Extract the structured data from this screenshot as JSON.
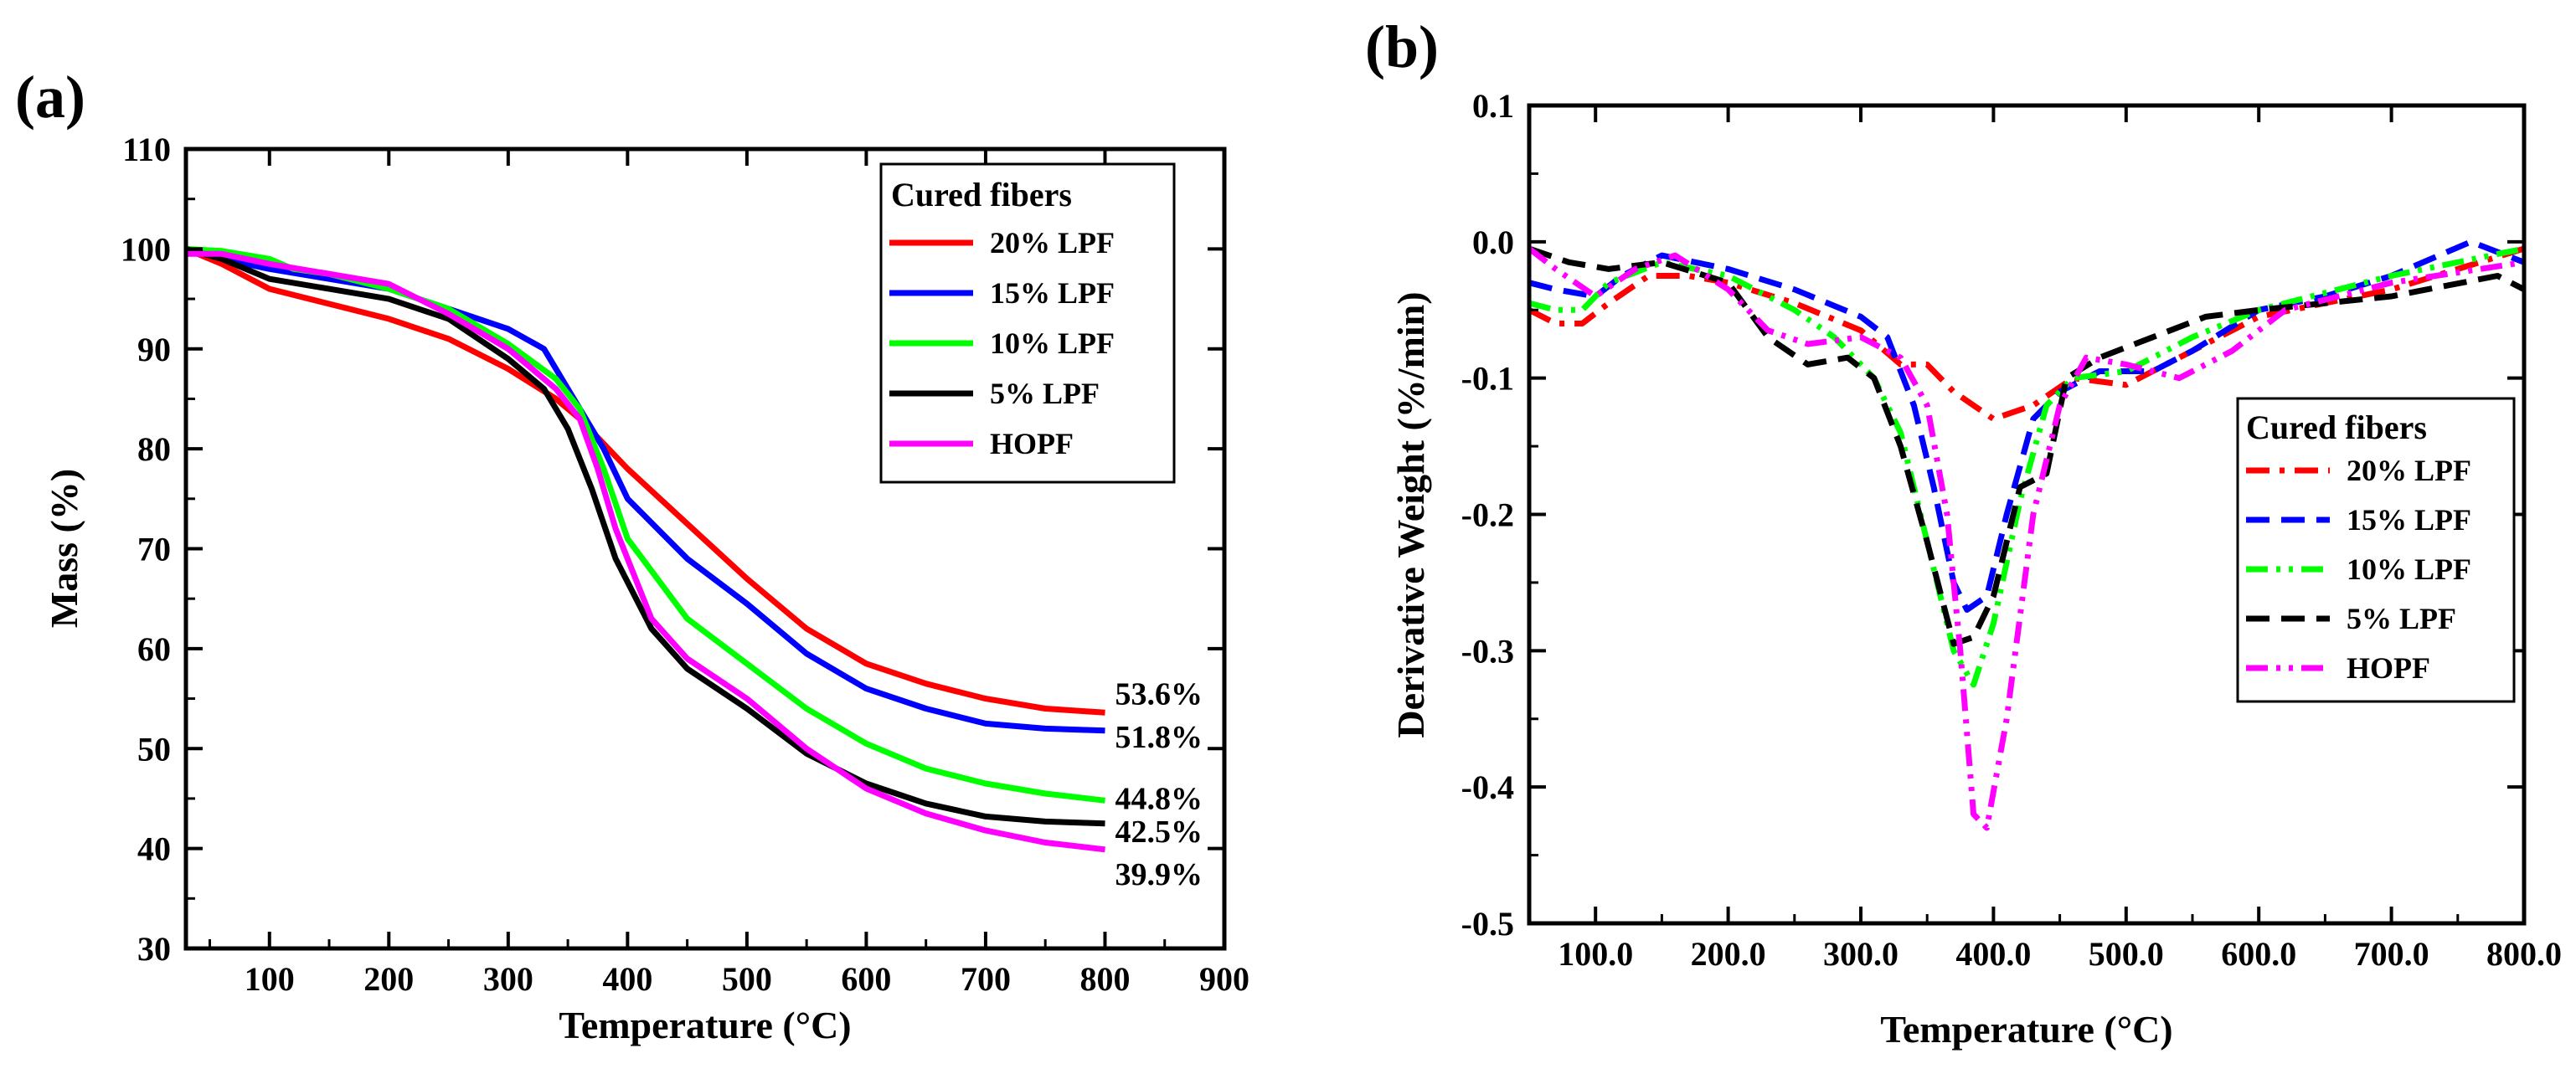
{
  "chart_data": [
    {
      "id": "a",
      "type": "line",
      "panel_label": "(a)",
      "title": "",
      "xlabel": "Temperature (°C)",
      "ylabel": "Mass (%)",
      "xlim": [
        30,
        900
      ],
      "ylim": [
        30,
        110
      ],
      "xticks": [
        100,
        200,
        300,
        400,
        500,
        600,
        700,
        800,
        900
      ],
      "yticks": [
        30,
        40,
        50,
        60,
        70,
        80,
        90,
        100,
        110
      ],
      "grid": false,
      "legend": {
        "title": "Cured fibers",
        "placement": "top-right"
      },
      "series": [
        {
          "name": "20% LPF",
          "color": "#ff0000",
          "dash": "solid",
          "points": [
            [
              30,
              100
            ],
            [
              60,
              98.5
            ],
            [
              100,
              96
            ],
            [
              150,
              94.5
            ],
            [
              200,
              93
            ],
            [
              250,
              91
            ],
            [
              300,
              88
            ],
            [
              340,
              85
            ],
            [
              360,
              83
            ],
            [
              380,
              80.5
            ],
            [
              400,
              78
            ],
            [
              450,
              72.5
            ],
            [
              500,
              67
            ],
            [
              550,
              62
            ],
            [
              600,
              58.5
            ],
            [
              650,
              56.5
            ],
            [
              700,
              55
            ],
            [
              750,
              54
            ],
            [
              800,
              53.6
            ]
          ]
        },
        {
          "name": "15% LPF",
          "color": "#0000ff",
          "dash": "solid",
          "points": [
            [
              30,
              100
            ],
            [
              60,
              99
            ],
            [
              100,
              98
            ],
            [
              150,
              97
            ],
            [
              200,
              96
            ],
            [
              250,
              94
            ],
            [
              300,
              92
            ],
            [
              330,
              90
            ],
            [
              350,
              86
            ],
            [
              365,
              83
            ],
            [
              380,
              80
            ],
            [
              400,
              75
            ],
            [
              450,
              69
            ],
            [
              500,
              64.5
            ],
            [
              550,
              59.5
            ],
            [
              600,
              56
            ],
            [
              650,
              54
            ],
            [
              700,
              52.5
            ],
            [
              750,
              52
            ],
            [
              800,
              51.8
            ]
          ]
        },
        {
          "name": "10% LPF",
          "color": "#00ff00",
          "dash": "solid",
          "points": [
            [
              30,
              100
            ],
            [
              60,
              99.8
            ],
            [
              100,
              99
            ],
            [
              120,
              98
            ],
            [
              150,
              97.5
            ],
            [
              200,
              96
            ],
            [
              250,
              94
            ],
            [
              300,
              90.5
            ],
            [
              340,
              87
            ],
            [
              360,
              84
            ],
            [
              380,
              78
            ],
            [
              400,
              71
            ],
            [
              450,
              63
            ],
            [
              500,
              58.5
            ],
            [
              550,
              54
            ],
            [
              600,
              50.5
            ],
            [
              650,
              48
            ],
            [
              700,
              46.5
            ],
            [
              750,
              45.5
            ],
            [
              800,
              44.8
            ]
          ]
        },
        {
          "name": "5% LPF",
          "color": "#000000",
          "dash": "solid",
          "points": [
            [
              30,
              100
            ],
            [
              60,
              99
            ],
            [
              100,
              97
            ],
            [
              150,
              96
            ],
            [
              200,
              95
            ],
            [
              250,
              93
            ],
            [
              300,
              89
            ],
            [
              330,
              86
            ],
            [
              350,
              82
            ],
            [
              370,
              76
            ],
            [
              390,
              69
            ],
            [
              420,
              62
            ],
            [
              450,
              58
            ],
            [
              500,
              54
            ],
            [
              550,
              49.5
            ],
            [
              600,
              46.5
            ],
            [
              650,
              44.5
            ],
            [
              700,
              43.2
            ],
            [
              750,
              42.7
            ],
            [
              800,
              42.5
            ]
          ]
        },
        {
          "name": "HOPF",
          "color": "#ff00ff",
          "dash": "solid",
          "points": [
            [
              30,
              99.5
            ],
            [
              60,
              99.5
            ],
            [
              100,
              98.5
            ],
            [
              150,
              97.5
            ],
            [
              200,
              96.5
            ],
            [
              250,
              93.5
            ],
            [
              300,
              90
            ],
            [
              340,
              86
            ],
            [
              360,
              83
            ],
            [
              375,
              78
            ],
            [
              390,
              72
            ],
            [
              420,
              63
            ],
            [
              450,
              59
            ],
            [
              500,
              55
            ],
            [
              550,
              50
            ],
            [
              600,
              46
            ],
            [
              650,
              43.5
            ],
            [
              700,
              41.8
            ],
            [
              750,
              40.6
            ],
            [
              800,
              39.9
            ]
          ]
        }
      ],
      "annotations": [
        {
          "text": "53.6%",
          "x": 800,
          "y": 53.6
        },
        {
          "text": "51.8%",
          "x": 800,
          "y": 51.8
        },
        {
          "text": "44.8%",
          "x": 800,
          "y": 44.8
        },
        {
          "text": "42.5%",
          "x": 800,
          "y": 42.5
        },
        {
          "text": "39.9%",
          "x": 800,
          "y": 39.9
        }
      ]
    },
    {
      "id": "b",
      "type": "line",
      "panel_label": "(b)",
      "title": "",
      "xlabel": "Temperature (°C)",
      "ylabel": "Derivative Weight (%/min)",
      "xlim": [
        50,
        800
      ],
      "ylim": [
        -0.5,
        0.1
      ],
      "xticks": [
        100,
        200,
        300,
        400,
        500,
        600,
        700,
        800
      ],
      "yticks": [
        -0.5,
        -0.4,
        -0.3,
        -0.2,
        -0.1,
        0.0,
        0.1
      ],
      "grid": false,
      "legend": {
        "title": "Cured fibers",
        "placement": "center-right"
      },
      "series": [
        {
          "name": "20% LPF",
          "color": "#ff0000",
          "dash": "dashdot",
          "points": [
            [
              50,
              -0.05
            ],
            [
              70,
              -0.06
            ],
            [
              90,
              -0.06
            ],
            [
              110,
              -0.045
            ],
            [
              140,
              -0.025
            ],
            [
              170,
              -0.025
            ],
            [
              200,
              -0.03
            ],
            [
              250,
              -0.045
            ],
            [
              300,
              -0.065
            ],
            [
              330,
              -0.09
            ],
            [
              350,
              -0.09
            ],
            [
              370,
              -0.11
            ],
            [
              400,
              -0.13
            ],
            [
              430,
              -0.12
            ],
            [
              460,
              -0.1
            ],
            [
              500,
              -0.105
            ],
            [
              550,
              -0.08
            ],
            [
              600,
              -0.055
            ],
            [
              650,
              -0.045
            ],
            [
              700,
              -0.035
            ],
            [
              750,
              -0.02
            ],
            [
              800,
              -0.005
            ]
          ]
        },
        {
          "name": "15% LPF",
          "color": "#0000ff",
          "dash": "dash",
          "points": [
            [
              50,
              -0.03
            ],
            [
              70,
              -0.035
            ],
            [
              100,
              -0.04
            ],
            [
              120,
              -0.025
            ],
            [
              150,
              -0.01
            ],
            [
              200,
              -0.02
            ],
            [
              250,
              -0.035
            ],
            [
              300,
              -0.055
            ],
            [
              320,
              -0.07
            ],
            [
              340,
              -0.12
            ],
            [
              355,
              -0.18
            ],
            [
              370,
              -0.25
            ],
            [
              380,
              -0.27
            ],
            [
              395,
              -0.26
            ],
            [
              410,
              -0.2
            ],
            [
              430,
              -0.13
            ],
            [
              450,
              -0.11
            ],
            [
              480,
              -0.095
            ],
            [
              520,
              -0.095
            ],
            [
              550,
              -0.08
            ],
            [
              600,
              -0.05
            ],
            [
              650,
              -0.04
            ],
            [
              700,
              -0.025
            ],
            [
              760,
              0.0
            ],
            [
              800,
              -0.015
            ]
          ]
        },
        {
          "name": "10% LPF",
          "color": "#00ff00",
          "dash": "dashdotdot",
          "points": [
            [
              50,
              -0.045
            ],
            [
              70,
              -0.05
            ],
            [
              90,
              -0.05
            ],
            [
              110,
              -0.03
            ],
            [
              150,
              -0.015
            ],
            [
              200,
              -0.025
            ],
            [
              250,
              -0.05
            ],
            [
              280,
              -0.07
            ],
            [
              310,
              -0.1
            ],
            [
              330,
              -0.14
            ],
            [
              350,
              -0.22
            ],
            [
              370,
              -0.3
            ],
            [
              385,
              -0.325
            ],
            [
              400,
              -0.28
            ],
            [
              420,
              -0.19
            ],
            [
              440,
              -0.12
            ],
            [
              460,
              -0.1
            ],
            [
              500,
              -0.095
            ],
            [
              550,
              -0.07
            ],
            [
              600,
              -0.05
            ],
            [
              700,
              -0.025
            ],
            [
              800,
              -0.005
            ]
          ]
        },
        {
          "name": "5% LPF",
          "color": "#000000",
          "dash": "dash",
          "points": [
            [
              50,
              -0.005
            ],
            [
              80,
              -0.015
            ],
            [
              110,
              -0.02
            ],
            [
              150,
              -0.015
            ],
            [
              200,
              -0.03
            ],
            [
              230,
              -0.07
            ],
            [
              260,
              -0.09
            ],
            [
              290,
              -0.085
            ],
            [
              310,
              -0.1
            ],
            [
              330,
              -0.15
            ],
            [
              350,
              -0.22
            ],
            [
              370,
              -0.295
            ],
            [
              385,
              -0.29
            ],
            [
              400,
              -0.26
            ],
            [
              420,
              -0.18
            ],
            [
              440,
              -0.17
            ],
            [
              455,
              -0.1
            ],
            [
              480,
              -0.085
            ],
            [
              520,
              -0.07
            ],
            [
              560,
              -0.055
            ],
            [
              600,
              -0.05
            ],
            [
              700,
              -0.04
            ],
            [
              780,
              -0.025
            ],
            [
              800,
              -0.035
            ]
          ]
        },
        {
          "name": "HOPF",
          "color": "#ff00ff",
          "dash": "dashdotdot",
          "points": [
            [
              50,
              -0.005
            ],
            [
              70,
              -0.02
            ],
            [
              100,
              -0.04
            ],
            [
              130,
              -0.02
            ],
            [
              160,
              -0.01
            ],
            [
              200,
              -0.035
            ],
            [
              230,
              -0.065
            ],
            [
              260,
              -0.075
            ],
            [
              300,
              -0.07
            ],
            [
              330,
              -0.085
            ],
            [
              350,
              -0.12
            ],
            [
              365,
              -0.2
            ],
            [
              375,
              -0.3
            ],
            [
              385,
              -0.42
            ],
            [
              395,
              -0.43
            ],
            [
              410,
              -0.35
            ],
            [
              430,
              -0.2
            ],
            [
              450,
              -0.12
            ],
            [
              470,
              -0.085
            ],
            [
              500,
              -0.09
            ],
            [
              540,
              -0.1
            ],
            [
              580,
              -0.08
            ],
            [
              620,
              -0.05
            ],
            [
              700,
              -0.03
            ],
            [
              800,
              -0.015
            ]
          ]
        }
      ]
    }
  ]
}
